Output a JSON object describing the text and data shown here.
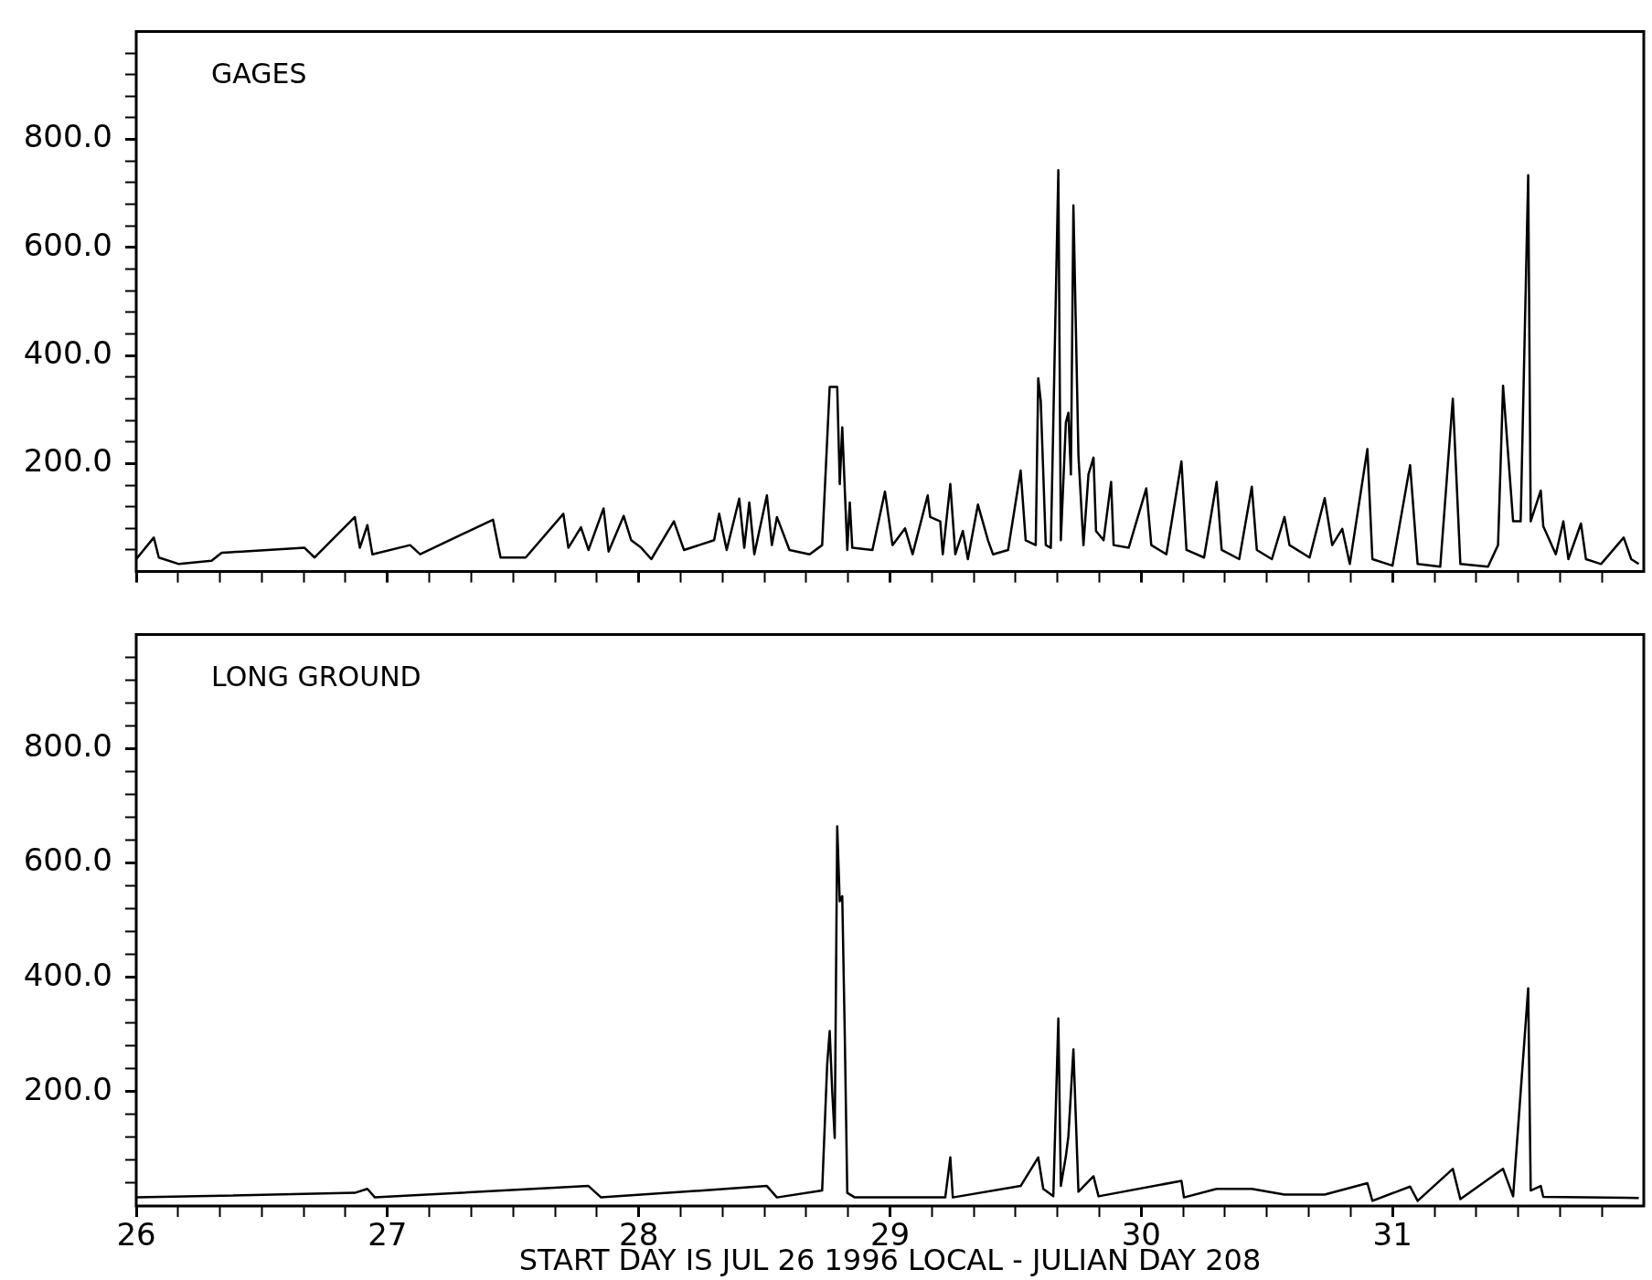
{
  "chart_data": [
    {
      "type": "line",
      "title": "GAGES",
      "tick_labels": "y",
      "xlim": [
        26,
        32
      ],
      "ylim": [
        0,
        1000
      ],
      "xticks": [
        26,
        {
          "value": 26.167,
          "label": null
        },
        {
          "value": 26.333,
          "label": null
        },
        {
          "value": 26.5,
          "label": null
        },
        {
          "value": 26.667,
          "label": null
        },
        {
          "value": 26.833,
          "label": null
        },
        27,
        {
          "value": 27.167,
          "label": null
        },
        {
          "value": 27.333,
          "label": null
        },
        {
          "value": 27.5,
          "label": null
        },
        {
          "value": 27.667,
          "label": null
        },
        {
          "value": 27.833,
          "label": null
        },
        28,
        {
          "value": 28.167,
          "label": null
        },
        {
          "value": 28.333,
          "label": null
        },
        {
          "value": 28.5,
          "label": null
        },
        {
          "value": 28.667,
          "label": null
        },
        {
          "value": 28.833,
          "label": null
        },
        29,
        {
          "value": 29.167,
          "label": null
        },
        {
          "value": 29.333,
          "label": null
        },
        {
          "value": 29.5,
          "label": null
        },
        {
          "value": 29.667,
          "label": null
        },
        {
          "value": 29.833,
          "label": null
        },
        30,
        {
          "value": 30.167,
          "label": null
        },
        {
          "value": 30.333,
          "label": null
        },
        {
          "value": 30.5,
          "label": null
        },
        {
          "value": 30.667,
          "label": null
        },
        {
          "value": 30.833,
          "label": null
        },
        31,
        {
          "value": 31.167,
          "label": null
        },
        {
          "value": 31.333,
          "label": null
        },
        {
          "value": 31.5,
          "label": null
        },
        {
          "value": 31.667,
          "label": null
        },
        {
          "value": 31.833,
          "label": null
        }
      ],
      "yticks": [
        {
          "value": 40,
          "label": null
        },
        {
          "value": 80,
          "label": null
        },
        {
          "value": 120,
          "label": null
        },
        {
          "value": 160,
          "label": null
        },
        {
          "value": 200,
          "label": "200.0"
        },
        {
          "value": 240,
          "label": null
        },
        {
          "value": 280,
          "label": null
        },
        {
          "value": 320,
          "label": null
        },
        {
          "value": 360,
          "label": null
        },
        {
          "value": 400,
          "label": "400.0"
        },
        {
          "value": 440,
          "label": null
        },
        {
          "value": 480,
          "label": null
        },
        {
          "value": 520,
          "label": null
        },
        {
          "value": 560,
          "label": null
        },
        {
          "value": 600,
          "label": "600.0"
        },
        {
          "value": 640,
          "label": null
        },
        {
          "value": 680,
          "label": null
        },
        {
          "value": 720,
          "label": null
        },
        {
          "value": 760,
          "label": null
        },
        {
          "value": 800,
          "label": "800.0"
        },
        {
          "value": 840,
          "label": null
        },
        {
          "value": 880,
          "label": null
        },
        {
          "value": 920,
          "label": null
        },
        {
          "value": 960,
          "label": null
        }
      ],
      "series": [
        {
          "color": "#000000",
          "x": [
            26.0,
            26.07,
            26.09,
            26.17,
            26.3,
            26.34,
            26.42,
            26.67,
            26.71,
            26.87,
            26.89,
            26.92,
            26.94,
            27.09,
            27.13,
            27.42,
            27.45,
            27.55,
            27.7,
            27.72,
            27.77,
            27.8,
            27.86,
            27.88,
            27.94,
            27.97,
            28.01,
            28.05,
            28.14,
            28.18,
            28.3,
            28.32,
            28.35,
            28.4,
            28.42,
            28.44,
            28.46,
            28.51,
            28.53,
            28.55,
            28.6,
            28.68,
            28.73,
            28.76,
            28.79,
            28.8,
            28.81,
            28.83,
            28.84,
            28.85,
            28.93,
            28.98,
            29.01,
            29.06,
            29.09,
            29.15,
            29.16,
            29.2,
            29.21,
            29.24,
            29.26,
            29.29,
            29.31,
            29.35,
            29.39,
            29.41,
            29.47,
            29.52,
            29.54,
            29.58,
            29.59,
            29.6,
            29.62,
            29.64,
            29.67,
            29.68,
            29.7,
            29.71,
            29.72,
            29.73,
            29.75,
            29.77,
            29.79,
            29.81,
            29.82,
            29.85,
            29.88,
            29.89,
            29.95,
            30.02,
            30.04,
            30.1,
            30.16,
            30.18,
            30.25,
            30.3,
            30.32,
            30.39,
            30.44,
            30.46,
            30.52,
            30.57,
            30.59,
            30.67,
            30.73,
            30.76,
            30.8,
            30.83,
            30.9,
            30.92,
            31.0,
            31.07,
            31.1,
            31.19,
            31.24,
            31.27,
            31.38,
            31.42,
            31.44,
            31.48,
            31.51,
            31.54,
            31.55,
            31.59,
            31.6,
            31.65,
            31.68,
            31.7,
            31.75,
            31.77,
            31.83,
            31.92,
            31.95,
            31.98
          ],
          "values": [
            23,
            63,
            26,
            14,
            20,
            35,
            37,
            44,
            26,
            101,
            44,
            86,
            32,
            49,
            32,
            96,
            26,
            26,
            107,
            44,
            82,
            40,
            117,
            37,
            103,
            58,
            44,
            23,
            93,
            40,
            58,
            107,
            40,
            135,
            44,
            128,
            32,
            141,
            49,
            101,
            40,
            32,
            49,
            342,
            342,
            162,
            267,
            40,
            128,
            44,
            40,
            148,
            49,
            80,
            32,
            141,
            101,
            93,
            32,
            162,
            32,
            75,
            23,
            124,
            58,
            32,
            40,
            187,
            58,
            49,
            358,
            316,
            49,
            44,
            743,
            58,
            276,
            294,
            180,
            678,
            215,
            49,
            180,
            211,
            75,
            58,
            166,
            49,
            44,
            154,
            49,
            32,
            204,
            40,
            26,
            166,
            40,
            23,
            157,
            40,
            23,
            101,
            49,
            26,
            136,
            49,
            79,
            14,
            227,
            23,
            11,
            197,
            14,
            9,
            320,
            14,
            9,
            49,
            344,
            93,
            93,
            734,
            93,
            150,
            84,
            32,
            93,
            23,
            89,
            23,
            14,
            63,
            23,
            14
          ]
        }
      ]
    },
    {
      "type": "line",
      "title": "LONG GROUND",
      "xlabel": "START DAY IS JUL 26 1996 LOCAL - JULIAN DAY 208",
      "xlim": [
        26,
        32
      ],
      "ylim": [
        0,
        1000
      ],
      "xticks": [
        26,
        {
          "value": 26.167,
          "label": null
        },
        {
          "value": 26.333,
          "label": null
        },
        {
          "value": 26.5,
          "label": null
        },
        {
          "value": 26.667,
          "label": null
        },
        {
          "value": 26.833,
          "label": null
        },
        27,
        {
          "value": 27.167,
          "label": null
        },
        {
          "value": 27.333,
          "label": null
        },
        {
          "value": 27.5,
          "label": null
        },
        {
          "value": 27.667,
          "label": null
        },
        {
          "value": 27.833,
          "label": null
        },
        28,
        {
          "value": 28.167,
          "label": null
        },
        {
          "value": 28.333,
          "label": null
        },
        {
          "value": 28.5,
          "label": null
        },
        {
          "value": 28.667,
          "label": null
        },
        {
          "value": 28.833,
          "label": null
        },
        29,
        {
          "value": 29.167,
          "label": null
        },
        {
          "value": 29.333,
          "label": null
        },
        {
          "value": 29.5,
          "label": null
        },
        {
          "value": 29.667,
          "label": null
        },
        {
          "value": 29.833,
          "label": null
        },
        30,
        {
          "value": 30.167,
          "label": null
        },
        {
          "value": 30.333,
          "label": null
        },
        {
          "value": 30.5,
          "label": null
        },
        {
          "value": 30.667,
          "label": null
        },
        {
          "value": 30.833,
          "label": null
        },
        31,
        {
          "value": 31.167,
          "label": null
        },
        {
          "value": 31.333,
          "label": null
        },
        {
          "value": 31.5,
          "label": null
        },
        {
          "value": 31.667,
          "label": null
        },
        {
          "value": 31.833,
          "label": null
        }
      ],
      "yticks": [
        {
          "value": 40,
          "label": null
        },
        {
          "value": 80,
          "label": null
        },
        {
          "value": 120,
          "label": null
        },
        {
          "value": 160,
          "label": null
        },
        {
          "value": 200,
          "label": "200.0"
        },
        {
          "value": 240,
          "label": null
        },
        {
          "value": 280,
          "label": null
        },
        {
          "value": 320,
          "label": null
        },
        {
          "value": 360,
          "label": null
        },
        {
          "value": 400,
          "label": "400.0"
        },
        {
          "value": 440,
          "label": null
        },
        {
          "value": 480,
          "label": null
        },
        {
          "value": 520,
          "label": null
        },
        {
          "value": 560,
          "label": null
        },
        {
          "value": 600,
          "label": "600.0"
        },
        {
          "value": 640,
          "label": null
        },
        {
          "value": 680,
          "label": null
        },
        {
          "value": 720,
          "label": null
        },
        {
          "value": 760,
          "label": null
        },
        {
          "value": 800,
          "label": "800.0"
        },
        {
          "value": 840,
          "label": null
        },
        {
          "value": 880,
          "label": null
        },
        {
          "value": 920,
          "label": null
        },
        {
          "value": 960,
          "label": null
        }
      ],
      "series": [
        {
          "color": "#000000",
          "x": [
            26.0,
            26.87,
            26.92,
            26.95,
            27.8,
            27.85,
            28.51,
            28.55,
            28.73,
            28.75,
            28.76,
            28.77,
            28.78,
            28.79,
            28.8,
            28.81,
            28.82,
            28.83,
            28.86,
            29.22,
            29.24,
            29.25,
            29.52,
            29.59,
            29.61,
            29.65,
            29.67,
            29.68,
            29.7,
            29.71,
            29.73,
            29.75,
            29.81,
            29.83,
            30.16,
            30.17,
            30.3,
            30.44,
            30.57,
            30.73,
            30.9,
            30.92,
            31.07,
            31.1,
            31.24,
            31.27,
            31.44,
            31.48,
            31.54,
            31.55,
            31.59,
            31.6,
            31.98
          ],
          "values": [
            15,
            23,
            30,
            15,
            35,
            15,
            35,
            15,
            27,
            248,
            306,
            201,
            119,
            664,
            533,
            542,
            300,
            23,
            15,
            15,
            85,
            15,
            35,
            85,
            30,
            17,
            328,
            35,
            87,
            122,
            274,
            25,
            52,
            17,
            44,
            15,
            30,
            30,
            20,
            20,
            40,
            9,
            34,
            9,
            65,
            12,
            65,
            17,
            381,
            27,
            35,
            16,
            14
          ]
        }
      ]
    }
  ]
}
